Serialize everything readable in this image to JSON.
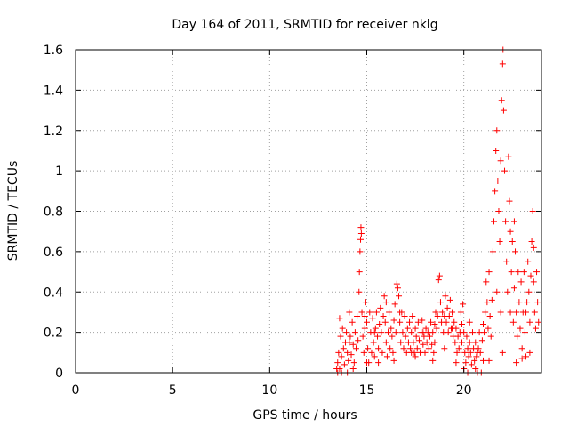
{
  "chart_data": {
    "type": "scatter",
    "title": "Day 164 of 2011, SRMTID for receiver nklg",
    "xlabel": "GPS time / hours",
    "ylabel": "SRMTID / TECUs",
    "xlim": [
      0,
      24
    ],
    "ylim": [
      0,
      1.6
    ],
    "xticks": [
      0,
      5,
      10,
      15,
      20
    ],
    "yticks": [
      0,
      0.2,
      0.4,
      0.6,
      0.8,
      1,
      1.2,
      1.4,
      1.6
    ],
    "xtick_labels": [
      "0",
      "5",
      "10",
      "15",
      "20"
    ],
    "ytick_labels": [
      "0",
      "0.2",
      "0.4",
      "0.6",
      "0.8",
      "1",
      "1.2",
      "1.4",
      "1.6"
    ],
    "grid": true,
    "legend": "none",
    "marker": "plus",
    "color": "#ff0000",
    "series": [
      {
        "name": "SRMTID",
        "points": [
          [
            13.45,
            0.02
          ],
          [
            13.5,
            0.05
          ],
          [
            13.55,
            0.1
          ],
          [
            13.6,
            0.27
          ],
          [
            13.65,
            0.18
          ],
          [
            13.7,
            0.08
          ],
          [
            13.75,
            0.22
          ],
          [
            13.8,
            0.12
          ],
          [
            13.85,
            0.04
          ],
          [
            13.9,
            0.15
          ],
          [
            13.95,
            0.2
          ],
          [
            14.0,
            0.1
          ],
          [
            14.05,
            0.06
          ],
          [
            14.1,
            0.3
          ],
          [
            14.15,
            0.18
          ],
          [
            14.2,
            0.09
          ],
          [
            14.25,
            0.25
          ],
          [
            14.3,
            0.14
          ],
          [
            14.35,
            0.05
          ],
          [
            14.4,
            0.2
          ],
          [
            14.45,
            0.12
          ],
          [
            14.5,
            0.28
          ],
          [
            14.55,
            0.16
          ],
          [
            14.6,
            0.4
          ],
          [
            14.62,
            0.5
          ],
          [
            14.65,
            0.6
          ],
          [
            14.68,
            0.66
          ],
          [
            14.7,
            0.72
          ],
          [
            14.72,
            0.69
          ],
          [
            14.75,
            0.3
          ],
          [
            14.8,
            0.18
          ],
          [
            14.85,
            0.1
          ],
          [
            14.9,
            0.22
          ],
          [
            14.95,
            0.35
          ],
          [
            15.0,
            0.25
          ],
          [
            15.05,
            0.12
          ],
          [
            15.1,
            0.05
          ],
          [
            15.15,
            0.3
          ],
          [
            15.2,
            0.2
          ],
          [
            15.25,
            0.1
          ],
          [
            15.3,
            0.27
          ],
          [
            15.35,
            0.15
          ],
          [
            15.4,
            0.08
          ],
          [
            15.45,
            0.22
          ],
          [
            15.5,
            0.3
          ],
          [
            15.55,
            0.18
          ],
          [
            15.6,
            0.12
          ],
          [
            15.65,
            0.24
          ],
          [
            15.7,
            0.32
          ],
          [
            15.75,
            0.2
          ],
          [
            15.8,
            0.1
          ],
          [
            15.85,
            0.28
          ],
          [
            15.9,
            0.38
          ],
          [
            15.95,
            0.25
          ],
          [
            16.0,
            0.15
          ],
          [
            16.05,
            0.08
          ],
          [
            16.1,
            0.2
          ],
          [
            16.15,
            0.3
          ],
          [
            16.2,
            0.12
          ],
          [
            16.25,
            0.22
          ],
          [
            16.3,
            0.18
          ],
          [
            16.35,
            0.1
          ],
          [
            16.4,
            0.26
          ],
          [
            16.45,
            0.34
          ],
          [
            16.5,
            0.2
          ],
          [
            16.55,
            0.44
          ],
          [
            16.6,
            0.42
          ],
          [
            16.65,
            0.38
          ],
          [
            16.7,
            0.25
          ],
          [
            16.75,
            0.15
          ],
          [
            16.8,
            0.3
          ],
          [
            16.85,
            0.2
          ],
          [
            16.9,
            0.12
          ],
          [
            16.95,
            0.28
          ],
          [
            17.0,
            0.18
          ],
          [
            17.05,
            0.1
          ],
          [
            17.1,
            0.22
          ],
          [
            17.15,
            0.15
          ],
          [
            17.2,
            0.25
          ],
          [
            17.25,
            0.12
          ],
          [
            17.3,
            0.2
          ],
          [
            17.35,
            0.28
          ],
          [
            17.4,
            0.15
          ],
          [
            17.45,
            0.1
          ],
          [
            17.5,
            0.22
          ],
          [
            17.55,
            0.18
          ],
          [
            17.6,
            0.12
          ],
          [
            17.65,
            0.25
          ],
          [
            17.7,
            0.16
          ],
          [
            17.75,
            0.1
          ],
          [
            17.8,
            0.2
          ],
          [
            17.85,
            0.26
          ],
          [
            17.9,
            0.14
          ],
          [
            17.95,
            0.18
          ],
          [
            18.0,
            0.1
          ],
          [
            18.05,
            0.22
          ],
          [
            18.1,
            0.15
          ],
          [
            18.15,
            0.2
          ],
          [
            18.2,
            0.12
          ],
          [
            18.25,
            0.18
          ],
          [
            18.3,
            0.25
          ],
          [
            18.35,
            0.14
          ],
          [
            18.4,
            0.2
          ],
          [
            18.45,
            0.1
          ],
          [
            18.5,
            0.24
          ],
          [
            18.55,
            0.3
          ],
          [
            18.6,
            0.22
          ],
          [
            18.65,
            0.28
          ],
          [
            18.7,
            0.46
          ],
          [
            18.75,
            0.48
          ],
          [
            18.8,
            0.35
          ],
          [
            18.85,
            0.25
          ],
          [
            18.9,
            0.3
          ],
          [
            18.95,
            0.2
          ],
          [
            19.0,
            0.28
          ],
          [
            19.05,
            0.38
          ],
          [
            19.1,
            0.25
          ],
          [
            19.15,
            0.32
          ],
          [
            19.2,
            0.2
          ],
          [
            19.25,
            0.28
          ],
          [
            19.3,
            0.36
          ],
          [
            19.35,
            0.22
          ],
          [
            19.4,
            0.3
          ],
          [
            19.45,
            0.18
          ],
          [
            19.5,
            0.25
          ],
          [
            19.55,
            0.15
          ],
          [
            19.6,
            0.22
          ],
          [
            19.65,
            0.1
          ],
          [
            19.7,
            0.18
          ],
          [
            19.75,
            0.12
          ],
          [
            19.8,
            0.2
          ],
          [
            19.85,
            0.3
          ],
          [
            19.9,
            0.24
          ],
          [
            19.95,
            0.34
          ],
          [
            20.0,
            0.2
          ],
          [
            20.05,
            0.1
          ],
          [
            20.1,
            0.05
          ],
          [
            20.15,
            0.18
          ],
          [
            20.2,
            0.12
          ],
          [
            20.25,
            0.08
          ],
          [
            20.3,
            0.15
          ],
          [
            20.35,
            0.1
          ],
          [
            20.4,
            0.04
          ],
          [
            20.45,
            0.2
          ],
          [
            20.5,
            0.12
          ],
          [
            20.55,
            0.06
          ],
          [
            20.6,
            0.15
          ],
          [
            20.65,
            0.08
          ],
          [
            20.7,
            0.0
          ],
          [
            20.75,
            0.12
          ],
          [
            20.8,
            0.2
          ],
          [
            20.85,
            0.1
          ],
          [
            20.9,
            0.0
          ],
          [
            20.95,
            0.16
          ],
          [
            21.0,
            0.06
          ],
          [
            21.05,
            0.2
          ],
          [
            21.1,
            0.3
          ],
          [
            21.15,
            0.45
          ],
          [
            21.2,
            0.35
          ],
          [
            21.25,
            0.22
          ],
          [
            21.3,
            0.5
          ],
          [
            21.35,
            0.28
          ],
          [
            21.4,
            0.18
          ],
          [
            21.45,
            0.36
          ],
          [
            21.5,
            0.6
          ],
          [
            21.55,
            0.75
          ],
          [
            21.6,
            0.9
          ],
          [
            21.65,
            1.1
          ],
          [
            21.7,
            1.2
          ],
          [
            21.75,
            0.95
          ],
          [
            21.8,
            0.8
          ],
          [
            21.85,
            0.65
          ],
          [
            21.9,
            1.05
          ],
          [
            21.95,
            1.35
          ],
          [
            22.0,
            1.53
          ],
          [
            22.02,
            1.6
          ],
          [
            22.05,
            1.3
          ],
          [
            22.1,
            1.0
          ],
          [
            22.15,
            0.75
          ],
          [
            22.2,
            0.55
          ],
          [
            22.25,
            0.4
          ],
          [
            22.3,
            1.07
          ],
          [
            22.35,
            0.85
          ],
          [
            22.4,
            0.3
          ],
          [
            22.45,
            0.5
          ],
          [
            22.5,
            0.65
          ],
          [
            22.55,
            0.25
          ],
          [
            22.6,
            0.42
          ],
          [
            22.65,
            0.6
          ],
          [
            22.7,
            0.3
          ],
          [
            22.75,
            0.18
          ],
          [
            22.8,
            0.5
          ],
          [
            22.85,
            0.35
          ],
          [
            22.9,
            0.22
          ],
          [
            22.95,
            0.45
          ],
          [
            23.0,
            0.12
          ],
          [
            23.05,
            0.3
          ],
          [
            23.1,
            0.5
          ],
          [
            23.15,
            0.2
          ],
          [
            23.2,
            0.08
          ],
          [
            23.25,
            0.35
          ],
          [
            23.3,
            0.55
          ],
          [
            23.35,
            0.4
          ],
          [
            23.4,
            0.25
          ],
          [
            23.45,
            0.48
          ],
          [
            23.5,
            0.65
          ],
          [
            23.55,
            0.8
          ],
          [
            23.6,
            0.45
          ],
          [
            23.65,
            0.3
          ],
          [
            23.7,
            0.22
          ],
          [
            23.75,
            0.5
          ],
          [
            23.8,
            0.35
          ],
          [
            23.85,
            0.25
          ],
          [
            13.5,
            0.0
          ],
          [
            13.6,
            0.02
          ],
          [
            13.7,
            0.0
          ],
          [
            14.0,
            0.0
          ],
          [
            14.3,
            0.02
          ],
          [
            15.0,
            0.05
          ],
          [
            15.6,
            0.05
          ],
          [
            16.4,
            0.06
          ],
          [
            17.5,
            0.08
          ],
          [
            18.4,
            0.06
          ],
          [
            19.6,
            0.05
          ],
          [
            20.0,
            0.02
          ],
          [
            20.2,
            0.0
          ],
          [
            20.6,
            0.02
          ],
          [
            21.3,
            0.06
          ],
          [
            22.0,
            0.1
          ],
          [
            22.7,
            0.05
          ],
          [
            23.0,
            0.07
          ],
          [
            23.4,
            0.1
          ],
          [
            14.1,
            0.15
          ],
          [
            14.9,
            0.28
          ],
          [
            15.4,
            0.2
          ],
          [
            16.0,
            0.35
          ],
          [
            16.7,
            0.3
          ],
          [
            17.3,
            0.1
          ],
          [
            17.9,
            0.2
          ],
          [
            18.5,
            0.15
          ],
          [
            19.0,
            0.12
          ],
          [
            19.4,
            0.22
          ],
          [
            19.9,
            0.15
          ],
          [
            20.3,
            0.25
          ],
          [
            20.7,
            0.1
          ],
          [
            21.0,
            0.24
          ],
          [
            21.7,
            0.4
          ],
          [
            21.9,
            0.3
          ],
          [
            22.4,
            0.7
          ],
          [
            22.6,
            0.75
          ],
          [
            23.2,
            0.3
          ],
          [
            23.6,
            0.62
          ]
        ]
      }
    ]
  }
}
